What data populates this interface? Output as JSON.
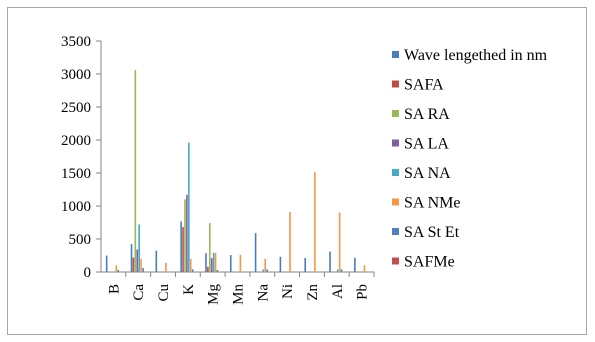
{
  "chart_data": {
    "type": "bar",
    "title": "",
    "xlabel": "",
    "ylabel": "",
    "ylim": [
      0,
      3500
    ],
    "yticks": [
      0,
      500,
      1000,
      1500,
      2000,
      2500,
      3000,
      3500
    ],
    "grid": false,
    "legend_position": "right",
    "categories": [
      "B",
      "Ca",
      "Cu",
      "K",
      "Mg",
      "Mn",
      "Na",
      "Ni",
      "Zn",
      "Al",
      "Pb"
    ],
    "series": [
      {
        "name": "Wave lengethed in nm",
        "color": "#4a7ebb",
        "values": [
          249,
          422,
          324,
          766,
          285,
          257,
          589,
          231,
          213,
          309,
          217
        ]
      },
      {
        "name": "SAFA",
        "color": "#be4b48",
        "values": [
          0,
          220,
          0,
          680,
          80,
          0,
          0,
          0,
          0,
          0,
          0
        ]
      },
      {
        "name": "SA RA",
        "color": "#98b954",
        "values": [
          0,
          3060,
          0,
          1100,
          740,
          0,
          0,
          0,
          0,
          0,
          0
        ]
      },
      {
        "name": "SA LA",
        "color": "#7d60a0",
        "values": [
          0,
          340,
          0,
          1170,
          210,
          0,
          0,
          0,
          0,
          0,
          0
        ]
      },
      {
        "name": "SA NA",
        "color": "#46aac5",
        "values": [
          0,
          720,
          0,
          1960,
          290,
          0,
          40,
          0,
          0,
          40,
          0
        ]
      },
      {
        "name": "SA NMe",
        "color": "#f79646",
        "values": [
          100,
          200,
          140,
          200,
          290,
          260,
          200,
          910,
          1510,
          900,
          100
        ]
      },
      {
        "name": "SA St Et",
        "color": "#4f81bd",
        "values": [
          30,
          60,
          0,
          40,
          30,
          0,
          40,
          0,
          0,
          40,
          0
        ]
      },
      {
        "name": "SAFMe",
        "color": "#c0504d",
        "values": [
          0,
          0,
          0,
          0,
          0,
          0,
          0,
          0,
          0,
          0,
          0
        ]
      }
    ]
  }
}
